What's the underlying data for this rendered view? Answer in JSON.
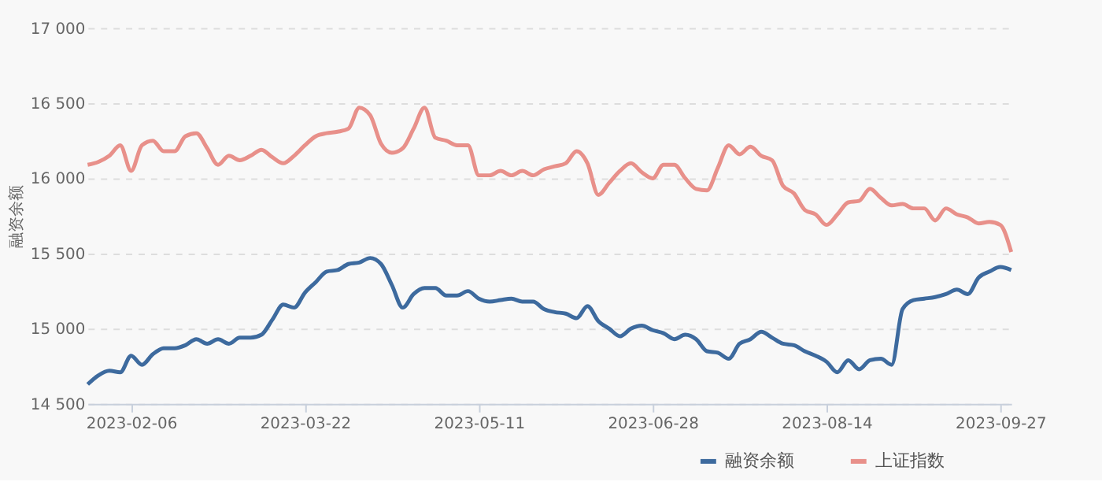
{
  "chart_data": {
    "type": "line",
    "ylabel": "融资余额",
    "categories": [
      null,
      null,
      null,
      null,
      "2023-02-06",
      null,
      null,
      null,
      null,
      null,
      null,
      null,
      null,
      null,
      null,
      null,
      null,
      null,
      null,
      null,
      "2023-03-22",
      null,
      null,
      null,
      null,
      null,
      null,
      null,
      null,
      null,
      null,
      null,
      null,
      null,
      null,
      null,
      "2023-05-11",
      null,
      null,
      null,
      null,
      null,
      null,
      null,
      null,
      null,
      null,
      null,
      null,
      null,
      null,
      null,
      "2023-06-28",
      null,
      null,
      null,
      null,
      null,
      null,
      null,
      null,
      null,
      null,
      null,
      null,
      null,
      null,
      null,
      "2023-08-14",
      null,
      null,
      null,
      null,
      null,
      null,
      null,
      null,
      null,
      null,
      null,
      null,
      null,
      null,
      null,
      "2023-09-27",
      null
    ],
    "series": [
      {
        "name": "融资余额",
        "color": "#3d6a9e",
        "values": [
          14630,
          14690,
          14720,
          14710,
          14820,
          14760,
          14830,
          14870,
          14870,
          14890,
          14930,
          14900,
          14930,
          14900,
          14940,
          14940,
          14960,
          15060,
          15160,
          15140,
          15240,
          15310,
          15380,
          15390,
          15430,
          15440,
          15470,
          15430,
          15290,
          15140,
          15230,
          15270,
          15270,
          15220,
          15220,
          15250,
          15200,
          15180,
          15190,
          15200,
          15180,
          15180,
          15130,
          15110,
          15100,
          15070,
          15150,
          15050,
          15000,
          14950,
          15000,
          15020,
          14990,
          14970,
          14930,
          14960,
          14930,
          14850,
          14840,
          14800,
          14900,
          14930,
          14980,
          14940,
          14900,
          14890,
          14850,
          14820,
          14780,
          14710,
          14790,
          14730,
          14790,
          14800,
          14760,
          15130,
          15190,
          15200,
          15210,
          15230,
          15260,
          15230,
          15340,
          15380,
          15410,
          15390
        ]
      },
      {
        "name": "上证指数",
        "color": "#e8908a",
        "values": [
          16090,
          16110,
          16150,
          16220,
          16050,
          16220,
          16250,
          16180,
          16180,
          16280,
          16300,
          16200,
          16090,
          16150,
          16120,
          16150,
          16190,
          16140,
          16100,
          16150,
          16220,
          16280,
          16300,
          16310,
          16330,
          16470,
          16420,
          16230,
          16170,
          16200,
          16330,
          16470,
          16270,
          16250,
          16220,
          16220,
          16020,
          16020,
          16050,
          16020,
          16050,
          16020,
          16060,
          16080,
          16100,
          16180,
          16100,
          15890,
          15970,
          16050,
          16100,
          16040,
          16000,
          16090,
          16090,
          16000,
          15930,
          15920,
          16070,
          16220,
          16160,
          16210,
          16150,
          16120,
          15950,
          15900,
          15790,
          15760,
          15690,
          15760,
          15840,
          15850,
          15930,
          15870,
          15820,
          15830,
          15800,
          15800,
          15720,
          15800,
          15760,
          15740,
          15700,
          15710,
          15690,
          15510
        ]
      }
    ],
    "ylim": [
      14500,
      17000
    ],
    "yticks": [
      {
        "value": 14500,
        "label": "14 500"
      },
      {
        "value": 15000,
        "label": "15 000"
      },
      {
        "value": 15500,
        "label": "15 500"
      },
      {
        "value": 16000,
        "label": "16 000"
      },
      {
        "value": 16500,
        "label": "16 500"
      },
      {
        "value": 17000,
        "label": "17 000"
      }
    ],
    "grid": "y",
    "legend": "bottom",
    "line_style": "solid",
    "marker": "none"
  }
}
